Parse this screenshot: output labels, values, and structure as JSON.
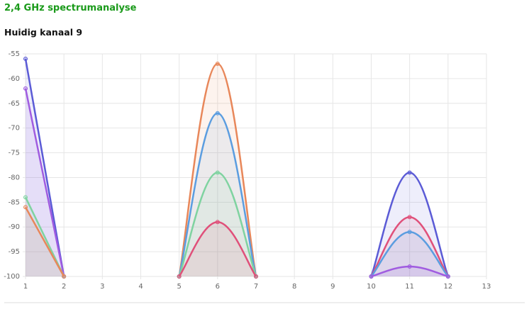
{
  "header": {
    "title": "2,4 GHz spectrumanalyse",
    "subtitle": "Huidig kanaal 9"
  },
  "chart_data": {
    "type": "line",
    "grid": true,
    "xlim": [
      1,
      13
    ],
    "xticks": [
      1,
      2,
      3,
      4,
      5,
      6,
      7,
      8,
      9,
      10,
      11,
      12,
      13
    ],
    "ylim": [
      -100,
      -55
    ],
    "yticks": [
      -55,
      -60,
      -65,
      -70,
      -75,
      -80,
      -85,
      -90,
      -95,
      -100
    ],
    "series": [
      {
        "color": "#5b5bd6",
        "x": [
          1,
          2
        ],
        "values": [
          -56,
          -100
        ]
      },
      {
        "color": "#a05ce0",
        "x": [
          1,
          2
        ],
        "values": [
          -62,
          -100
        ]
      },
      {
        "color": "#7fd3a0",
        "x": [
          1,
          2
        ],
        "values": [
          -84,
          -100
        ]
      },
      {
        "color": "#e8875a",
        "x": [
          1,
          2
        ],
        "values": [
          -86,
          -100
        ]
      },
      {
        "color": "#e8875a",
        "x": [
          5,
          6,
          7
        ],
        "values": [
          -100,
          -57,
          -100
        ]
      },
      {
        "color": "#5b9de0",
        "x": [
          5,
          6,
          7
        ],
        "values": [
          -100,
          -67,
          -100
        ]
      },
      {
        "color": "#7fd3a0",
        "x": [
          5,
          6,
          7
        ],
        "values": [
          -100,
          -79,
          -100
        ]
      },
      {
        "color": "#e0507a",
        "x": [
          5,
          6,
          7
        ],
        "values": [
          -100,
          -89,
          -100
        ]
      },
      {
        "color": "#5b5bd6",
        "x": [
          10,
          11,
          12
        ],
        "values": [
          -100,
          -79,
          -100
        ]
      },
      {
        "color": "#e0507a",
        "x": [
          10,
          11,
          12
        ],
        "values": [
          -100,
          -88,
          -100
        ]
      },
      {
        "color": "#5b9de0",
        "x": [
          10,
          11,
          12
        ],
        "values": [
          -100,
          -91,
          -100
        ]
      },
      {
        "color": "#a05ce0",
        "x": [
          10,
          11,
          12
        ],
        "values": [
          -100,
          -98,
          -100
        ]
      }
    ]
  }
}
